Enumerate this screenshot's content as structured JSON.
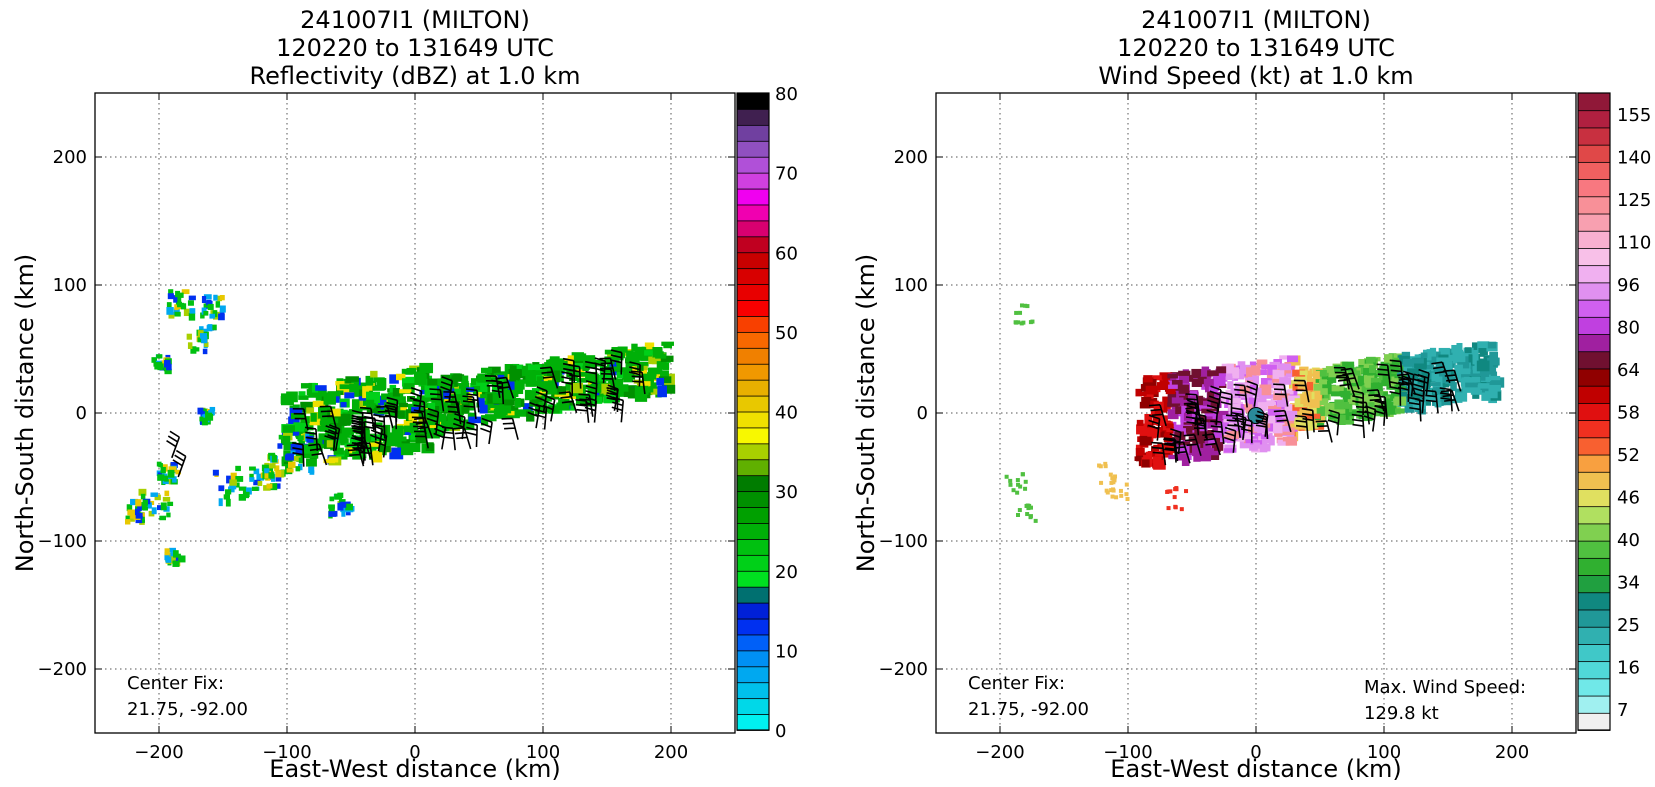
{
  "chart_data": [
    {
      "type": "heatmap",
      "title": [
        "241007I1 (MILTON)",
        "120220 to 131649 UTC",
        "Reflectivity (dBZ) at 1.0 km"
      ],
      "xlabel": "East-West distance (km)",
      "ylabel": "North-South distance (km)",
      "xlim": [
        -250,
        250
      ],
      "ylim": [
        -250,
        250
      ],
      "xticks": [
        -200,
        -100,
        0,
        100,
        200
      ],
      "yticks": [
        -200,
        -100,
        0,
        100,
        200
      ],
      "grid": true,
      "annotations": [
        {
          "id": "center-fix",
          "lines": [
            "Center Fix:",
            "21.75, -92.00"
          ],
          "position": "bottom-left"
        }
      ],
      "colorbar": {
        "min": 0,
        "max": 80,
        "ticks": [
          0,
          10,
          20,
          30,
          40,
          50,
          60,
          70,
          80
        ],
        "colors": [
          "#00f0f0",
          "#00d8e8",
          "#00c0ec",
          "#00a8f0",
          "#0090f4",
          "#0060f8",
          "#0030f0",
          "#0020d8",
          "#007070",
          "#00e020",
          "#00d018",
          "#00c010",
          "#00b008",
          "#00a000",
          "#009000",
          "#007c00",
          "#60b000",
          "#a8d000",
          "#f8f800",
          "#f0e000",
          "#e8c800",
          "#e8b000",
          "#f09800",
          "#f08000",
          "#f86800",
          "#f84000",
          "#f80000",
          "#e80000",
          "#d80000",
          "#c80000",
          "#c00020",
          "#d80070",
          "#f000b0",
          "#f000f0",
          "#d040e0",
          "#b050d8",
          "#9050c0",
          "#7040a0",
          "#402050",
          "#000000"
        ]
      },
      "series": [
        {
          "kind": "echo-band",
          "x": [
            -100,
            -60,
            -20,
            20,
            60,
            100,
            140,
            180
          ],
          "y": [
            -15,
            -5,
            5,
            15,
            22,
            30,
            38,
            45
          ]
        },
        {
          "kind": "scattered-echoes",
          "x": [
            -210,
            -200,
            -190,
            -180,
            -170,
            -160,
            -150,
            -140,
            -130,
            -120
          ],
          "y": [
            -70,
            -40,
            90,
            60,
            80,
            0,
            40,
            -50,
            -45,
            -40
          ]
        }
      ]
    },
    {
      "type": "heatmap",
      "title": [
        "241007I1 (MILTON)",
        "120220 to 131649 UTC",
        "Wind Speed (kt) at 1.0 km"
      ],
      "xlabel": "East-West distance (km)",
      "ylabel": "North-South distance (km)",
      "xlim": [
        -250,
        250
      ],
      "ylim": [
        -250,
        250
      ],
      "xticks": [
        -200,
        -100,
        0,
        100,
        200
      ],
      "yticks": [
        -200,
        -100,
        0,
        100,
        200
      ],
      "grid": true,
      "annotations": [
        {
          "id": "center-fix",
          "lines": [
            "Center Fix:",
            "21.75, -92.00"
          ],
          "position": "bottom-left"
        },
        {
          "id": "max-wind",
          "lines": [
            "Max. Wind Speed:",
            "129.8 kt"
          ],
          "position": "bottom-right"
        }
      ],
      "colorbar": {
        "labels": [
          7,
          16,
          25,
          34,
          40,
          46,
          52,
          58,
          64,
          80,
          96,
          110,
          125,
          140,
          155
        ],
        "colors": [
          "#f0f0f0",
          "#a0f0f0",
          "#70e8e8",
          "#50d8d8",
          "#40c8c8",
          "#30b0b0",
          "#209898",
          "#108880",
          "#20a040",
          "#30b030",
          "#50c040",
          "#80d050",
          "#b0e060",
          "#e0e060",
          "#f0c050",
          "#f8a040",
          "#f86030",
          "#f03020",
          "#e01010",
          "#c00000",
          "#900000",
          "#701030",
          "#a020a0",
          "#c040e0",
          "#d060f0",
          "#e090f0",
          "#f0b0f0",
          "#f8c0e8",
          "#f8b0d0",
          "#f8a0b0",
          "#f89098",
          "#f87880",
          "#f06060",
          "#e04848",
          "#c83040",
          "#b02040",
          "#901838"
        ]
      },
      "center_fix_km": [
        0,
        0
      ],
      "max_wind_kt": 129.8
    }
  ]
}
